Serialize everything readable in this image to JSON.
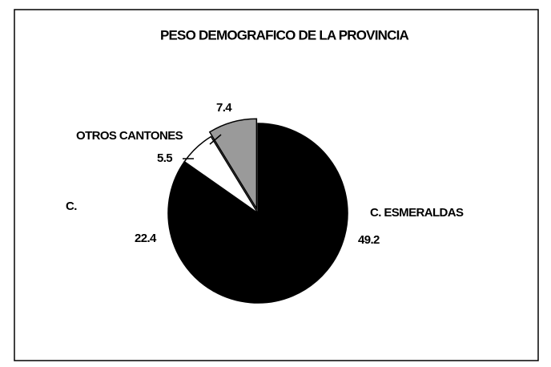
{
  "chart_data": {
    "type": "pie",
    "title": "PESO DEMOGRAFICO DE LA PROVINCIA",
    "categories": [
      "C. ESMERALDAS",
      "C.",
      "OTROS CANTONES",
      null
    ],
    "values": [
      49.2,
      22.4,
      5.5,
      7.4
    ],
    "colors": [
      "#000000",
      "#000000",
      "#ffffff",
      "#9a9a9a"
    ]
  }
}
